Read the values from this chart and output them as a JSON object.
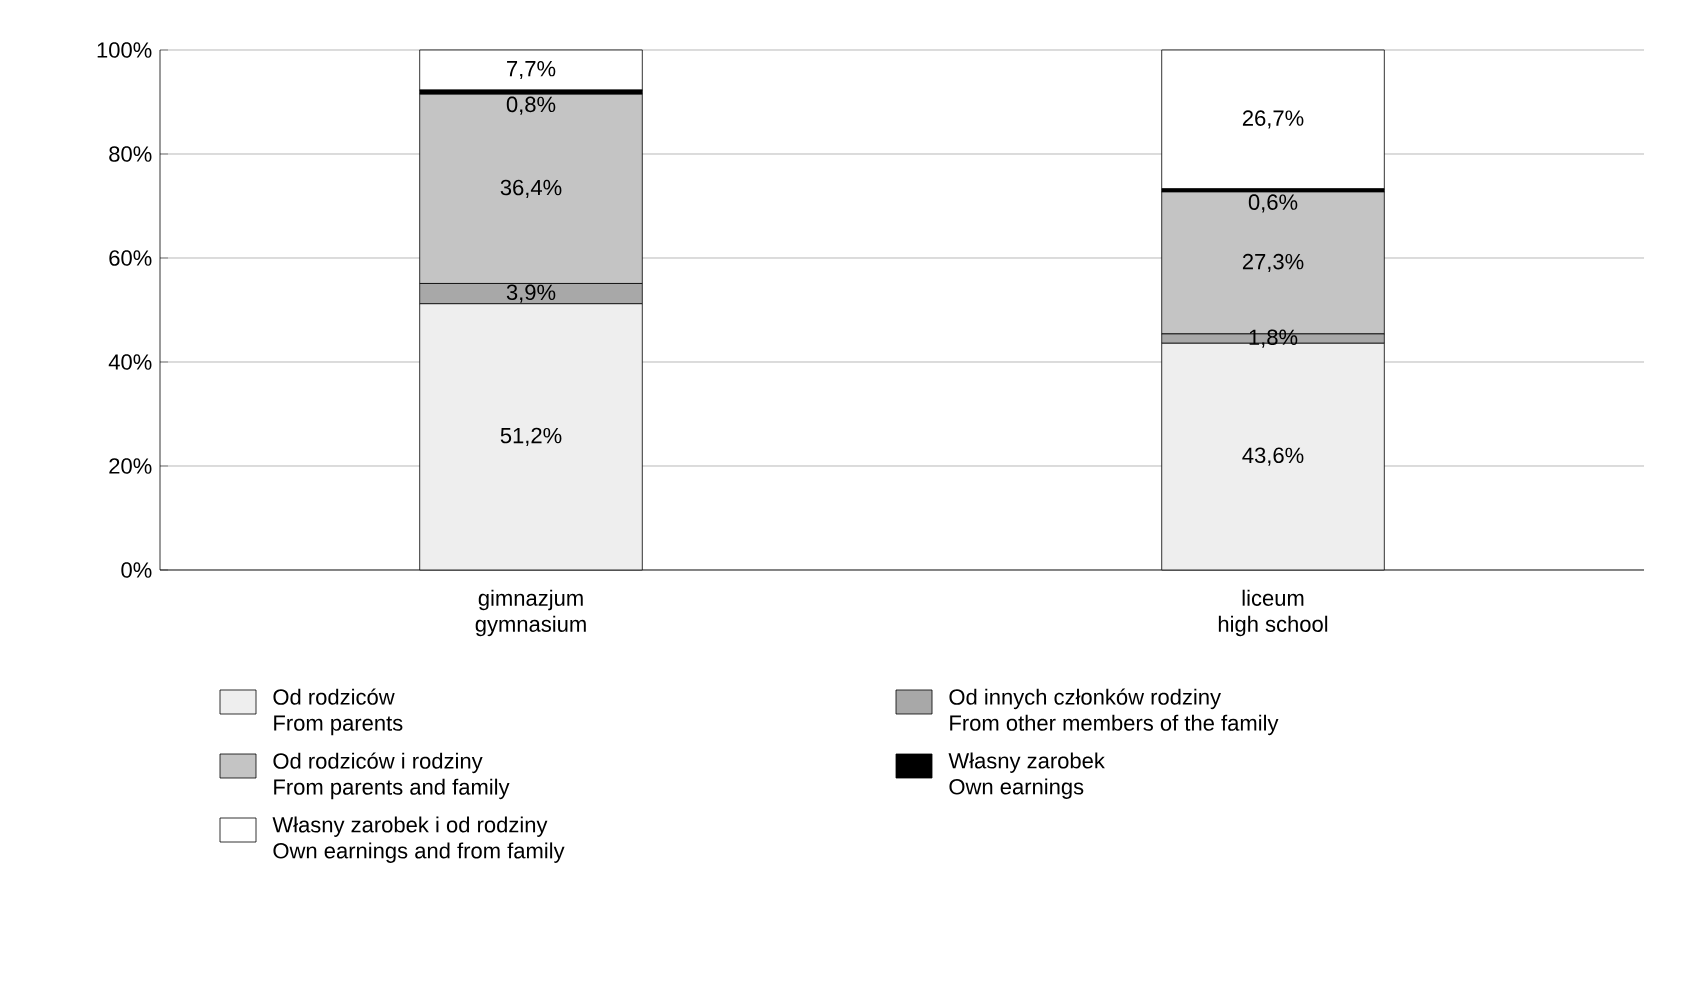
{
  "chart_data": {
    "type": "bar",
    "stacked": true,
    "categories": [
      "gimnazjum\ngymnasium",
      "liceum\nhigh school"
    ],
    "series": [
      {
        "name": "Od rodziców\nFrom parents",
        "color": "#eeeeee",
        "values": [
          51.2,
          43.6
        ],
        "value_labels": [
          "51,2%",
          "43,6%"
        ]
      },
      {
        "name": "Od innych członków rodziny\nFrom other members of the family",
        "color": "#a8a8a8",
        "values": [
          3.9,
          1.8
        ],
        "value_labels": [
          "3,9%",
          "1,8%"
        ]
      },
      {
        "name": "Od rodziców i rodziny\nFrom parents and family",
        "color": "#c4c4c4",
        "values": [
          36.4,
          27.3
        ],
        "value_labels": [
          "36,4%",
          "27,3%"
        ]
      },
      {
        "name": "Własny zarobek\nOwn earnings",
        "color": "#000000",
        "values": [
          0.8,
          0.6
        ],
        "value_labels": [
          "0,8%",
          "0,6%"
        ]
      },
      {
        "name": "Własny zarobek i od rodziny\nOwn earnings and from family",
        "color": "#ffffff",
        "values": [
          7.7,
          26.7
        ],
        "value_labels": [
          "7,7%",
          "26,7%"
        ]
      }
    ],
    "ylim": [
      0,
      100
    ],
    "yticks": [
      {
        "value": 0,
        "label": "0%"
      },
      {
        "value": 20,
        "label": "20%"
      },
      {
        "value": 40,
        "label": "40%"
      },
      {
        "value": 60,
        "label": "60%"
      },
      {
        "value": 80,
        "label": "80%"
      },
      {
        "value": 100,
        "label": "100%"
      }
    ],
    "grid": "y",
    "legend": "bottom"
  }
}
